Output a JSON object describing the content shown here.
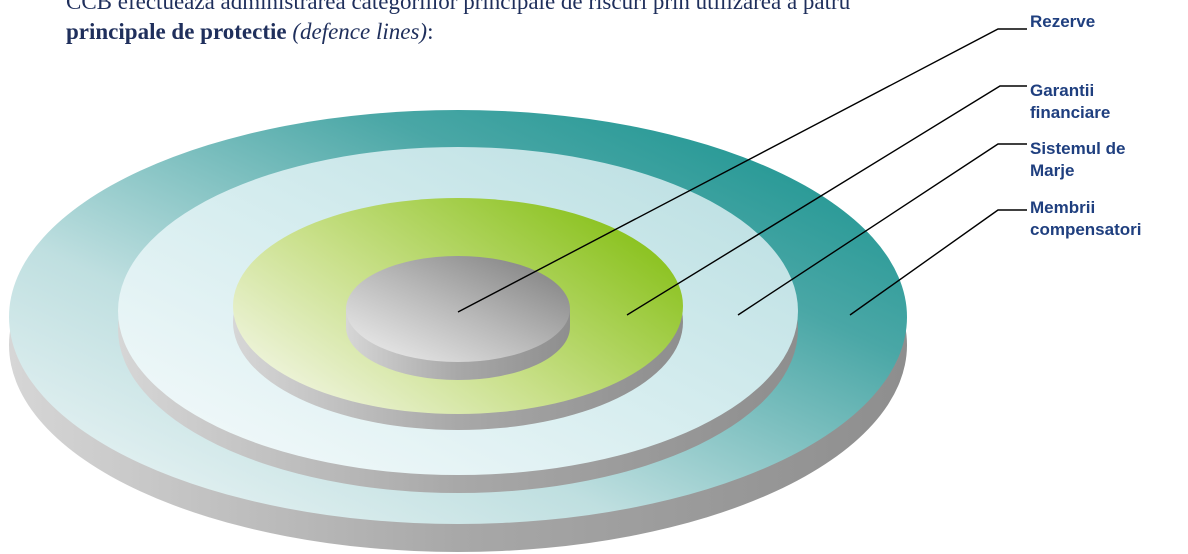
{
  "intro": {
    "line1_prefix": "CCB efectueaza administrarea categoriilor principale de riscuri prin utilizarea a patru",
    "line2_bold": "principale de protectie",
    "line2_space": " ",
    "line2_italic": "(defence lines)",
    "line2_suffix": ":"
  },
  "labels": {
    "rezerve": "Rezerve",
    "garantii": "Garantii\nfinanciare",
    "marje": "Sistemul de\nMarje",
    "membrii": "Membrii\ncompensatori"
  },
  "colors": {
    "outer_ring": "#14938f",
    "third_ring": "#c2e3e6",
    "green_ring": "#8cc21e",
    "core": "#9a9a9a",
    "label_text": "#1f3f7f"
  }
}
